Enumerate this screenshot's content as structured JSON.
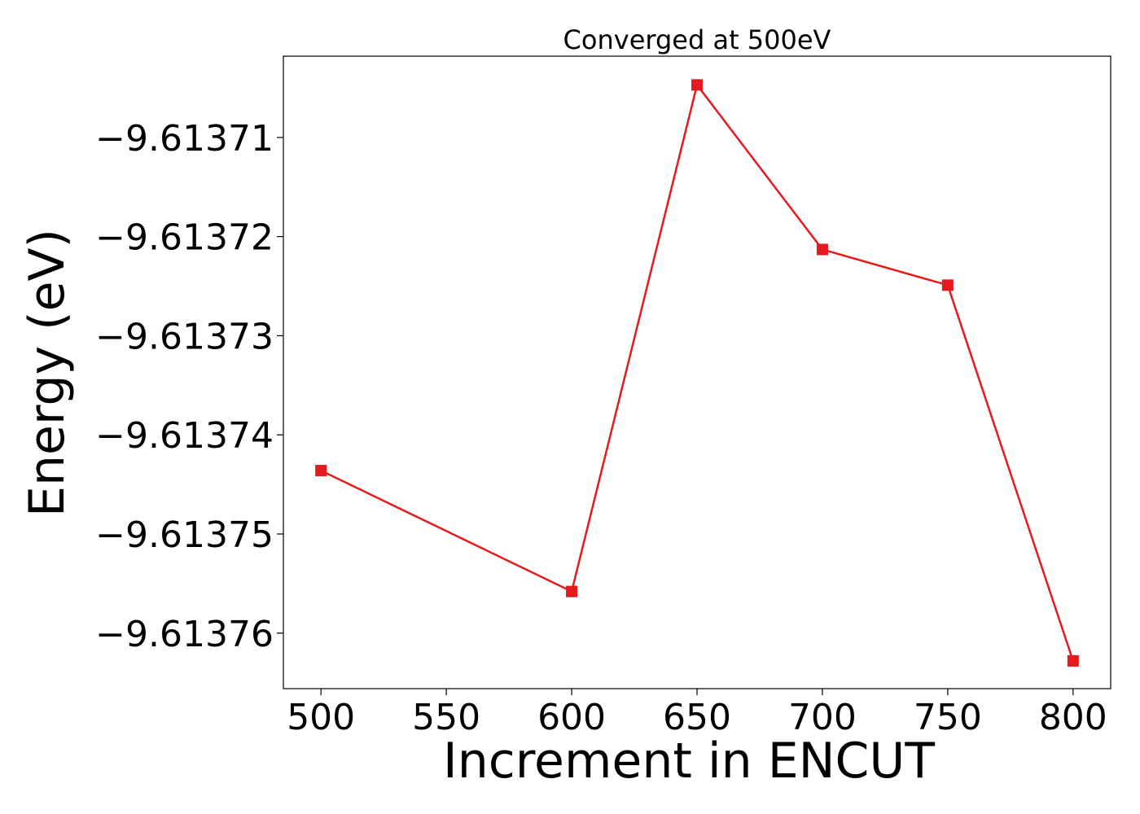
{
  "chart_data": {
    "type": "line",
    "title": "Converged at 500eV",
    "xlabel": "Increment in ENCUT",
    "ylabel": "Energy (eV)",
    "x": [
      500,
      600,
      650,
      700,
      750,
      800
    ],
    "series": [
      {
        "values": [
          -9.6137436,
          -9.6137558,
          -9.6137047,
          -9.6137213,
          -9.6137249,
          -9.6137628
        ],
        "color": "#e41a1c",
        "marker": "square"
      }
    ],
    "xlim": [
      485,
      815
    ],
    "ylim": [
      -9.6137656,
      -9.6137018
    ],
    "xticks": [
      500,
      550,
      600,
      650,
      700,
      750,
      800
    ],
    "xtick_labels": [
      "500",
      "550",
      "600",
      "650",
      "700",
      "750",
      "800"
    ],
    "yticks": [
      -9.61371,
      -9.61372,
      -9.61373,
      -9.61374,
      -9.61375,
      -9.61376
    ],
    "ytick_labels": [
      "−9.61371",
      "−9.61372",
      "−9.61373",
      "−9.61374",
      "−9.61375",
      "−9.61376"
    ],
    "grid": false,
    "legend": "none"
  }
}
